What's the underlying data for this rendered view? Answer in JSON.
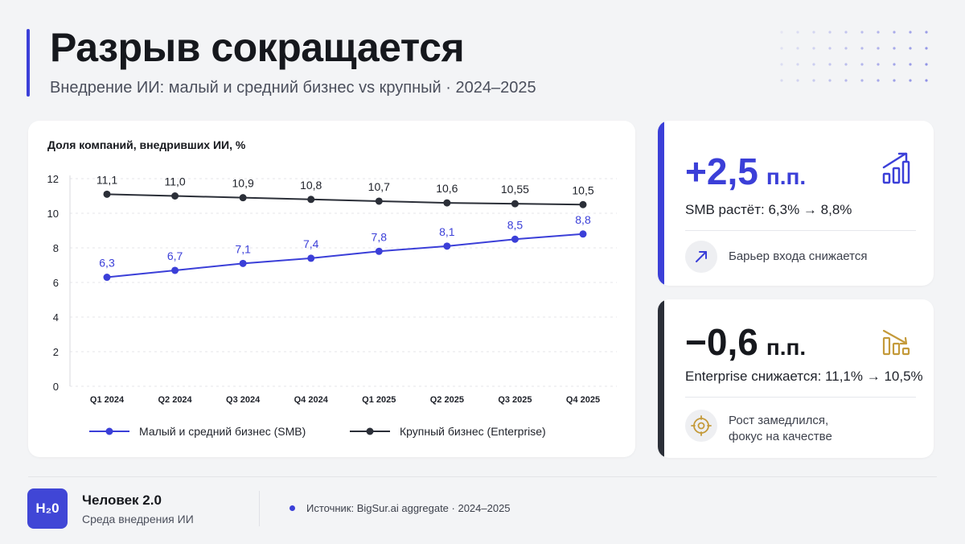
{
  "header": {
    "title": "Разрыв сокращается",
    "subtitle": "Внедрение ИИ: малый и средний бизнес vs крупный · 2024–2025"
  },
  "chart_data": {
    "type": "line",
    "title": "Доля компаний, внедривших ИИ, %",
    "categories": [
      "Q1 2024",
      "Q2 2024",
      "Q3 2024",
      "Q4 2024",
      "Q1 2025",
      "Q2 2025",
      "Q3 2025",
      "Q4 2025"
    ],
    "y_ticks": [
      "0",
      "2",
      "4",
      "6",
      "8",
      "10",
      "12"
    ],
    "ylim": [
      0,
      12
    ],
    "grid": true,
    "legend_position": "bottom",
    "series": [
      {
        "name": "Малый и средний бизнес (SMB)",
        "color": "#3b3fd8",
        "values": [
          6.3,
          6.7,
          7.1,
          7.4,
          7.8,
          8.1,
          8.5,
          8.8
        ],
        "labels": [
          "6,3",
          "6,7",
          "7,1",
          "7,4",
          "7,8",
          "8,1",
          "8,5",
          "8,8"
        ]
      },
      {
        "name": "Крупный бизнес (Enterprise)",
        "color": "#2b2f38",
        "values": [
          11.1,
          11.0,
          10.9,
          10.8,
          10.7,
          10.6,
          10.55,
          10.5
        ],
        "labels": [
          "11,1",
          "11,0",
          "10,9",
          "10,8",
          "10,7",
          "10,6",
          "10,55",
          "10,5"
        ]
      }
    ]
  },
  "kpi_smb": {
    "value": "+2,5",
    "unit": "п.п.",
    "description": "SMB растёт: 6,3% → 8,8%",
    "note": "Барьер входа снижается",
    "icon": "bar-growth-icon",
    "note_icon": "arrow-up-right-icon",
    "color": "#3b3fd8"
  },
  "kpi_enterprise": {
    "value": "−0,6",
    "unit": "п.п.",
    "description": "Enterprise снижается: 11,1% → 10,5%",
    "note_line1": "Рост замедлился,",
    "note_line2": "фокус на качестве",
    "icon": "bar-decline-icon",
    "note_icon": "target-icon",
    "color": "#c49a3a"
  },
  "footer": {
    "logo": "H₂0",
    "brand": "Человек 2.0",
    "brand_sub": "Среда внедрения ИИ",
    "source": "Источник: BigSur.ai aggregate · 2024–2025"
  }
}
